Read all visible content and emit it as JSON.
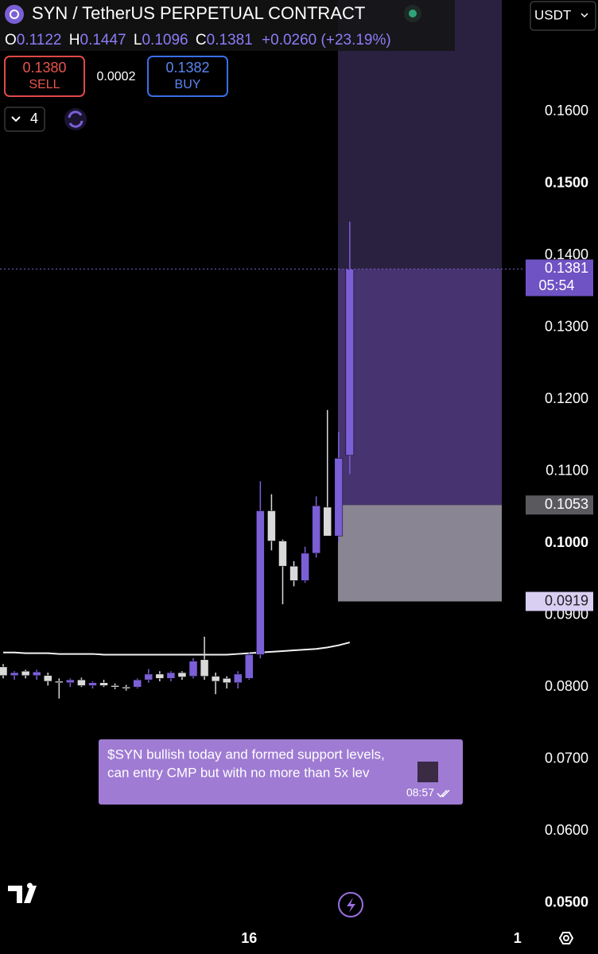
{
  "header": {
    "title": "SYN / TetherUS PERPETUAL CONTRACT",
    "ohlc": [
      {
        "key": "O",
        "value": "0.1122"
      },
      {
        "key": "H",
        "value": "0.1447"
      },
      {
        "key": "L",
        "value": "0.1096"
      },
      {
        "key": "C",
        "value": "0.1381"
      }
    ],
    "change": "+0.0260 (+23.19%)",
    "sell_price": "0.1380",
    "sell_label": "SELL",
    "spread": "0.0002",
    "buy_price": "0.1382",
    "buy_label": "BUY",
    "indicator_count": "4",
    "currency": "USDT"
  },
  "message": {
    "lines": [
      "$SYN bullish today and formed support levels,",
      "can entry CMP but with no more than 5x lev"
    ],
    "time": "08:57"
  },
  "chart_data": {
    "type": "candlestick",
    "categories": [
      null,
      null,
      null,
      null,
      null,
      null,
      null,
      null,
      null,
      null,
      null,
      null,
      null,
      null,
      null,
      null,
      null,
      null,
      null,
      null,
      null,
      null,
      "16",
      null,
      null,
      null,
      null,
      null,
      null,
      null,
      null,
      null,
      null,
      null,
      null,
      null,
      null,
      null,
      null,
      null,
      null,
      null,
      null,
      null,
      null,
      null,
      "1"
    ],
    "opens": [
      0.0828,
      0.0816,
      0.0822,
      0.0816,
      0.0816,
      0.0808,
      0.0806,
      0.081,
      0.0802,
      0.0806,
      0.0802,
      0.08,
      0.08,
      0.081,
      0.0818,
      0.0812,
      0.082,
      0.0815,
      0.0838,
      0.0815,
      0.0812,
      0.0806,
      0.0812,
      0.0845,
      0.1045,
      0.1003,
      0.0968,
      0.0948,
      0.0986,
      0.105,
      0.101,
      0.1122,
      null,
      null,
      null,
      null,
      null,
      null,
      null,
      null,
      null,
      null,
      null,
      null,
      null,
      null,
      null
    ],
    "highs": [
      0.0832,
      0.0822,
      0.0824,
      0.0824,
      0.082,
      0.0812,
      0.0812,
      0.0813,
      0.0808,
      0.081,
      0.0805,
      0.0803,
      0.0812,
      0.0825,
      0.0822,
      0.0822,
      0.0822,
      0.084,
      0.087,
      0.082,
      0.0815,
      0.0822,
      0.0848,
      0.1086,
      0.1068,
      0.1005,
      0.0975,
      0.0995,
      0.1065,
      0.1185,
      0.1155,
      0.1447,
      null,
      null,
      null,
      null,
      null,
      null,
      null,
      null,
      null,
      null,
      null,
      null,
      null,
      null,
      null
    ],
    "lows": [
      0.0812,
      0.081,
      0.0812,
      0.081,
      0.0802,
      0.0784,
      0.08,
      0.08,
      0.0798,
      0.08,
      0.0797,
      0.0795,
      0.0798,
      0.0806,
      0.0808,
      0.0808,
      0.081,
      0.0812,
      0.081,
      0.079,
      0.0798,
      0.0798,
      0.081,
      0.084,
      0.099,
      0.0915,
      0.094,
      0.0945,
      0.098,
      0.1018,
      0.1002,
      0.1096,
      null,
      null,
      null,
      null,
      null,
      null,
      null,
      null,
      null,
      null,
      null,
      null,
      null,
      null,
      null
    ],
    "closes": [
      0.0816,
      0.082,
      0.0816,
      0.0821,
      0.0808,
      0.0806,
      0.081,
      0.0802,
      0.0806,
      0.0802,
      0.08,
      0.0798,
      0.081,
      0.0818,
      0.0812,
      0.082,
      0.0814,
      0.0836,
      0.0815,
      0.0808,
      0.0806,
      0.0818,
      0.0845,
      0.1045,
      0.1003,
      0.0968,
      0.0948,
      0.0986,
      0.1052,
      0.101,
      0.1118,
      0.1381,
      null,
      null,
      null,
      null,
      null,
      null,
      null,
      null,
      null,
      null,
      null,
      null,
      null,
      null,
      null
    ],
    "up_color": "#7b5fd6",
    "down_color": "#d9d9d9",
    "moving_average": {
      "color": "#f2f2f2",
      "values": [
        0.0848,
        0.0848,
        0.0847,
        0.0847,
        0.0847,
        0.0846,
        0.0846,
        0.0846,
        0.0846,
        0.0845,
        0.0845,
        0.0845,
        0.0845,
        0.0845,
        0.0845,
        0.0845,
        0.0845,
        0.0845,
        0.0845,
        0.0845,
        0.0845,
        0.0846,
        0.0847,
        0.0848,
        0.0849,
        0.085,
        0.0851,
        0.0852,
        0.0853,
        0.0855,
        0.0858,
        0.0862,
        null,
        null,
        null,
        null,
        null,
        null,
        null,
        null,
        null,
        null,
        null,
        null,
        null,
        null,
        null
      ]
    },
    "position": {
      "entry": 0.1053,
      "stop": 0.0919,
      "profit_color": "#46336f",
      "upper_color": "#2a2140",
      "stop_color": "#8a8592"
    },
    "ylim": [
      0.0472,
      0.1755
    ],
    "yticks": [
      {
        "value": 0.16,
        "label": "0.1600"
      },
      {
        "value": 0.15,
        "label": "0.1500",
        "bold": true
      },
      {
        "value": 0.14,
        "label": "0.1400"
      },
      {
        "value": 0.13,
        "label": "0.1300"
      },
      {
        "value": 0.12,
        "label": "0.1200"
      },
      {
        "value": 0.11,
        "label": "0.1100"
      },
      {
        "value": 0.1,
        "label": "0.1000",
        "bold": true
      },
      {
        "value": 0.09,
        "label": "0.0900"
      },
      {
        "value": 0.08,
        "label": "0.0800"
      },
      {
        "value": 0.07,
        "label": "0.0700"
      },
      {
        "value": 0.06,
        "label": "0.0600"
      },
      {
        "value": 0.05,
        "label": "0.0500",
        "bold": true
      }
    ],
    "price_tags": [
      {
        "value": 0.1381,
        "time": "05:54",
        "color": "#6f52c4",
        "text_color": "#ffffff"
      },
      {
        "value": 0.1053,
        "color": "#5a5a5e",
        "text_color": "#ffffff"
      },
      {
        "value": 0.0919,
        "color": "#d9cff3",
        "text_color": "#222222"
      }
    ],
    "last_price_line_color": "#7b5fd6"
  }
}
